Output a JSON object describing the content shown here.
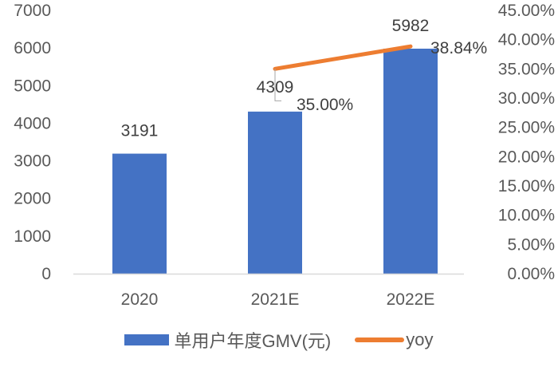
{
  "chart_data": {
    "type": "bar+line",
    "categories": [
      "2020",
      "2021E",
      "2022E"
    ],
    "series": [
      {
        "name": "单用户年度GMV(元)",
        "type": "bar",
        "axis": "left",
        "color": "#4472C4",
        "values": [
          3191,
          4309,
          5982
        ],
        "labels": [
          "3191",
          "4309",
          "5982"
        ]
      },
      {
        "name": "yoy",
        "type": "line",
        "axis": "right",
        "color": "#ED7D31",
        "values": [
          null,
          35.0,
          38.84
        ],
        "labels": [
          "",
          "35.00%",
          "38.84%"
        ]
      }
    ],
    "left_axis": {
      "min": 0,
      "max": 7000,
      "step": 1000,
      "ticks": [
        "0",
        "1000",
        "2000",
        "3000",
        "4000",
        "5000",
        "6000",
        "7000"
      ]
    },
    "right_axis": {
      "min": 0,
      "max": 45,
      "step": 5,
      "ticks": [
        "0.00%",
        "5.00%",
        "10.00%",
        "15.00%",
        "20.00%",
        "25.00%",
        "30.00%",
        "35.00%",
        "40.00%",
        "45.00%"
      ]
    },
    "title": "",
    "xlabel": "",
    "ylabel": "",
    "grid": false,
    "legend_position": "bottom"
  },
  "legend": {
    "bar_label": "单用户年度GMV(元)",
    "line_label": "yoy"
  }
}
